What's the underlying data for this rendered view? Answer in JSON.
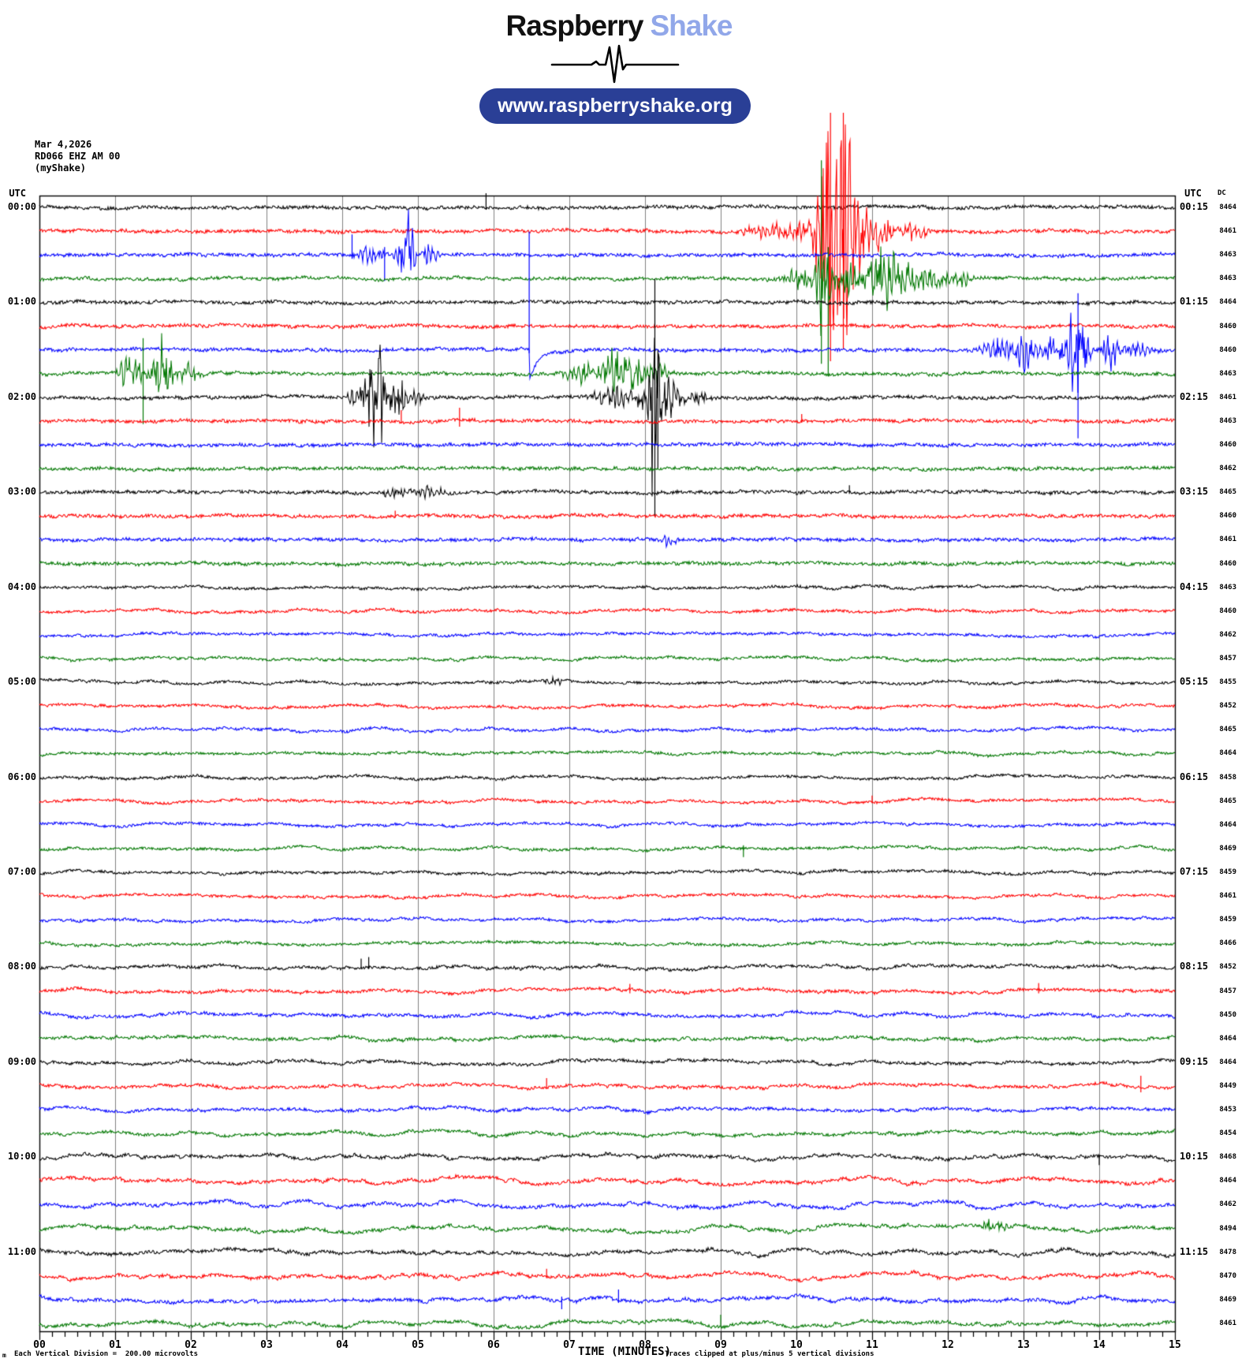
{
  "header": {
    "title": {
      "word1": "Raspberry",
      "word2": "Shake"
    },
    "link_pill": "www.raspberryshake.org"
  },
  "station_info": {
    "date": "Mar 4,2026",
    "station": "RD066 EHZ AM 00",
    "network": "(myShake)"
  },
  "colors": {
    "black": "#000000",
    "red": "#ff0000",
    "blue": "#0000ff",
    "green": "#007700",
    "grid": "#808080",
    "frame": "#000000",
    "pill_bg": "#2a3f96",
    "title_accent": "#91a7e9"
  },
  "chart_data": {
    "type": "line",
    "subtype": "helicorder-seismogram",
    "x_axis": {
      "label": "TIME (MINUTES)",
      "min": 0,
      "max": 15,
      "tick_labels": [
        "00",
        "01",
        "02",
        "03",
        "04",
        "05",
        "06",
        "07",
        "08",
        "09",
        "10",
        "11",
        "12",
        "13",
        "14",
        "15"
      ],
      "minor_ticks_per_major": 5,
      "grid": true
    },
    "left_time_header": "UTC",
    "right_time_header": "UTC",
    "dc_header": "DC",
    "hours_left": [
      "00:00",
      "01:00",
      "02:00",
      "03:00",
      "04:00",
      "05:00",
      "06:00",
      "07:00",
      "08:00",
      "09:00",
      "10:00",
      "11:00"
    ],
    "hours_right": [
      "00:15",
      "01:15",
      "02:15",
      "03:15",
      "04:15",
      "05:15",
      "06:15",
      "07:15",
      "08:15",
      "09:15",
      "10:15",
      "11:15"
    ],
    "rows_per_hour": 4,
    "minutes_per_row": 15,
    "color_cycle": [
      "black",
      "red",
      "blue",
      "green"
    ],
    "dc_values": [
      8464,
      8461,
      8463,
      8463,
      8464,
      8460,
      8460,
      8463,
      8461,
      8463,
      8460,
      8462,
      8465,
      8460,
      8461,
      8460,
      8463,
      8460,
      8462,
      8457,
      8455,
      8452,
      8465,
      8464,
      8458,
      8465,
      8464,
      8469,
      8459,
      8461,
      8459,
      8466,
      8452,
      8457,
      8450,
      8464,
      8464,
      8449,
      8453,
      8454,
      8468,
      8464,
      8462,
      8494,
      8478,
      8470,
      8469,
      8461
    ],
    "clip_divisions": 5,
    "division_microvolts": 200.0,
    "noise_profile": [
      {
        "from": 1,
        "to": 16,
        "hf": 2.0,
        "lf": 1.2
      },
      {
        "from": 17,
        "to": 32,
        "hf": 1.6,
        "lf": 2.4
      },
      {
        "from": 33,
        "to": 40,
        "hf": 1.8,
        "lf": 3.2
      },
      {
        "from": 41,
        "to": 48,
        "hf": 2.0,
        "lf": 4.4
      }
    ],
    "events": [
      {
        "row": 1,
        "kind": "spike",
        "t": 5.9,
        "up": 18,
        "dn": 3
      },
      {
        "row": 2,
        "kind": "burst",
        "t": 9.45,
        "w": 0.3,
        "amp": 6
      },
      {
        "row": 2,
        "kind": "burst",
        "t": 9.95,
        "w": 0.5,
        "amp": 12
      },
      {
        "row": 2,
        "kind": "burst",
        "t": 10.3,
        "w": 0.12,
        "amp": 60
      },
      {
        "row": 2,
        "kind": "burst",
        "t": 10.45,
        "w": 0.18,
        "amp": 150
      },
      {
        "row": 2,
        "kind": "burst",
        "t": 10.65,
        "w": 0.18,
        "amp": 140
      },
      {
        "row": 2,
        "kind": "spike",
        "t": 10.45,
        "up": 150,
        "dn": 165
      },
      {
        "row": 2,
        "kind": "spike",
        "t": 10.62,
        "up": 150,
        "dn": 150
      },
      {
        "row": 2,
        "kind": "burst",
        "t": 10.85,
        "w": 0.12,
        "amp": 45
      },
      {
        "row": 2,
        "kind": "burst",
        "t": 11.05,
        "w": 0.3,
        "amp": 26
      },
      {
        "row": 2,
        "kind": "burst",
        "t": 11.5,
        "w": 0.35,
        "amp": 10
      },
      {
        "row": 3,
        "kind": "spike",
        "t": 4.13,
        "up": 26,
        "dn": 5
      },
      {
        "row": 3,
        "kind": "burst",
        "t": 4.4,
        "w": 0.22,
        "amp": 13
      },
      {
        "row": 3,
        "kind": "spike",
        "t": 4.56,
        "up": 10,
        "dn": 33
      },
      {
        "row": 3,
        "kind": "burst",
        "t": 4.85,
        "w": 0.13,
        "amp": 52
      },
      {
        "row": 3,
        "kind": "burst",
        "t": 5.17,
        "w": 0.1,
        "amp": 17
      },
      {
        "row": 4,
        "kind": "burst",
        "t": 10.05,
        "w": 0.28,
        "amp": 15
      },
      {
        "row": 4,
        "kind": "burst",
        "t": 10.35,
        "w": 0.1,
        "amp": 70
      },
      {
        "row": 4,
        "kind": "spike",
        "t": 10.33,
        "up": 150,
        "dn": 108
      },
      {
        "row": 4,
        "kind": "spike",
        "t": 10.42,
        "up": 40,
        "dn": 124
      },
      {
        "row": 4,
        "kind": "burst",
        "t": 10.7,
        "w": 0.3,
        "amp": 22
      },
      {
        "row": 4,
        "kind": "burst",
        "t": 11.2,
        "w": 0.4,
        "amp": 40
      },
      {
        "row": 4,
        "kind": "burst",
        "t": 11.8,
        "w": 0.3,
        "amp": 12
      },
      {
        "row": 4,
        "kind": "burst",
        "t": 12.15,
        "w": 0.25,
        "amp": 9
      },
      {
        "row": 7,
        "kind": "cal",
        "t": 6.47,
        "up": 150,
        "dn": 42
      },
      {
        "row": 7,
        "kind": "burst",
        "t": 12.7,
        "w": 0.3,
        "amp": 12
      },
      {
        "row": 7,
        "kind": "burst",
        "t": 13.0,
        "w": 0.12,
        "amp": 34
      },
      {
        "row": 7,
        "kind": "burst",
        "t": 13.35,
        "w": 0.25,
        "amp": 16
      },
      {
        "row": 7,
        "kind": "burst",
        "t": 13.7,
        "w": 0.15,
        "amp": 65
      },
      {
        "row": 7,
        "kind": "spike",
        "t": 13.72,
        "up": 72,
        "dn": 112
      },
      {
        "row": 7,
        "kind": "burst",
        "t": 14.15,
        "w": 0.12,
        "amp": 26
      },
      {
        "row": 7,
        "kind": "burst",
        "t": 14.5,
        "w": 0.25,
        "amp": 9
      },
      {
        "row": 8,
        "kind": "burst",
        "t": 1.2,
        "w": 0.16,
        "amp": 28
      },
      {
        "row": 8,
        "kind": "spike",
        "t": 1.37,
        "up": 45,
        "dn": 64
      },
      {
        "row": 8,
        "kind": "burst",
        "t": 1.62,
        "w": 0.14,
        "amp": 44
      },
      {
        "row": 8,
        "kind": "burst",
        "t": 1.95,
        "w": 0.2,
        "amp": 14
      },
      {
        "row": 8,
        "kind": "burst",
        "t": 7.15,
        "w": 0.25,
        "amp": 12
      },
      {
        "row": 8,
        "kind": "burst",
        "t": 7.7,
        "w": 0.3,
        "amp": 38
      },
      {
        "row": 8,
        "kind": "burst",
        "t": 8.15,
        "w": 0.2,
        "amp": 14
      },
      {
        "row": 9,
        "kind": "burst",
        "t": 4.2,
        "w": 0.12,
        "amp": 18
      },
      {
        "row": 9,
        "kind": "burst",
        "t": 4.45,
        "w": 0.16,
        "amp": 82
      },
      {
        "row": 9,
        "kind": "burst",
        "t": 4.7,
        "w": 0.18,
        "amp": 28
      },
      {
        "row": 9,
        "kind": "burst",
        "t": 5.0,
        "w": 0.12,
        "amp": 10
      },
      {
        "row": 9,
        "kind": "burst",
        "t": 7.6,
        "w": 0.3,
        "amp": 13
      },
      {
        "row": 9,
        "kind": "burst",
        "t": 8.0,
        "w": 0.12,
        "amp": 22
      },
      {
        "row": 9,
        "kind": "burst",
        "t": 8.13,
        "w": 0.08,
        "amp": 150
      },
      {
        "row": 9,
        "kind": "spike",
        "t": 8.13,
        "up": 150,
        "dn": 150
      },
      {
        "row": 9,
        "kind": "spike",
        "t": 8.17,
        "up": 60,
        "dn": 90
      },
      {
        "row": 9,
        "kind": "burst",
        "t": 8.3,
        "w": 0.18,
        "amp": 26
      },
      {
        "row": 9,
        "kind": "burst",
        "t": 8.65,
        "w": 0.2,
        "amp": 9
      },
      {
        "row": 10,
        "kind": "spike",
        "t": 4.78,
        "up": 14,
        "dn": 3
      },
      {
        "row": 10,
        "kind": "spike",
        "t": 5.55,
        "up": 17,
        "dn": 7
      },
      {
        "row": 10,
        "kind": "spike",
        "t": 10.07,
        "up": 9,
        "dn": 2
      },
      {
        "row": 13,
        "kind": "burst",
        "t": 4.7,
        "w": 0.2,
        "amp": 6
      },
      {
        "row": 13,
        "kind": "burst",
        "t": 5.15,
        "w": 0.25,
        "amp": 7
      },
      {
        "row": 13,
        "kind": "spike",
        "t": 10.7,
        "up": 9,
        "dn": 2
      },
      {
        "row": 14,
        "kind": "spike",
        "t": 4.7,
        "up": 7,
        "dn": 2
      },
      {
        "row": 15,
        "kind": "burst",
        "t": 8.3,
        "w": 0.12,
        "amp": 9
      },
      {
        "row": 21,
        "kind": "burst",
        "t": 6.8,
        "w": 0.14,
        "amp": 8
      },
      {
        "row": 26,
        "kind": "spike",
        "t": 11.0,
        "up": 7,
        "dn": 2
      },
      {
        "row": 28,
        "kind": "spike",
        "t": 9.3,
        "up": 4,
        "dn": 11
      },
      {
        "row": 33,
        "kind": "spike",
        "t": 4.25,
        "up": 11,
        "dn": 2
      },
      {
        "row": 33,
        "kind": "spike",
        "t": 4.35,
        "up": 13,
        "dn": 2
      },
      {
        "row": 34,
        "kind": "spike",
        "t": 7.8,
        "up": 9,
        "dn": 3
      },
      {
        "row": 34,
        "kind": "spike",
        "t": 13.2,
        "up": 10,
        "dn": 3
      },
      {
        "row": 38,
        "kind": "spike",
        "t": 6.7,
        "up": 10,
        "dn": 4
      },
      {
        "row": 38,
        "kind": "spike",
        "t": 14.55,
        "up": 13,
        "dn": 8
      },
      {
        "row": 41,
        "kind": "spike",
        "t": 14.0,
        "up": 3,
        "dn": 10
      },
      {
        "row": 44,
        "kind": "burst",
        "t": 12.6,
        "w": 0.2,
        "amp": 8
      },
      {
        "row": 46,
        "kind": "spike",
        "t": 6.7,
        "up": 9,
        "dn": 3
      },
      {
        "row": 47,
        "kind": "spike",
        "t": 6.9,
        "up": 4,
        "dn": 12
      },
      {
        "row": 47,
        "kind": "spike",
        "t": 7.65,
        "up": 13,
        "dn": 4
      },
      {
        "row": 48,
        "kind": "spike",
        "t": 9.0,
        "up": 11,
        "dn": 3
      }
    ]
  },
  "footer": {
    "scale_note": "Each Vertical Division =  200.00 microvolts",
    "clip_note": "Traces clipped at plus/minus 5 vertical divisions",
    "corner_glyph": "m"
  }
}
